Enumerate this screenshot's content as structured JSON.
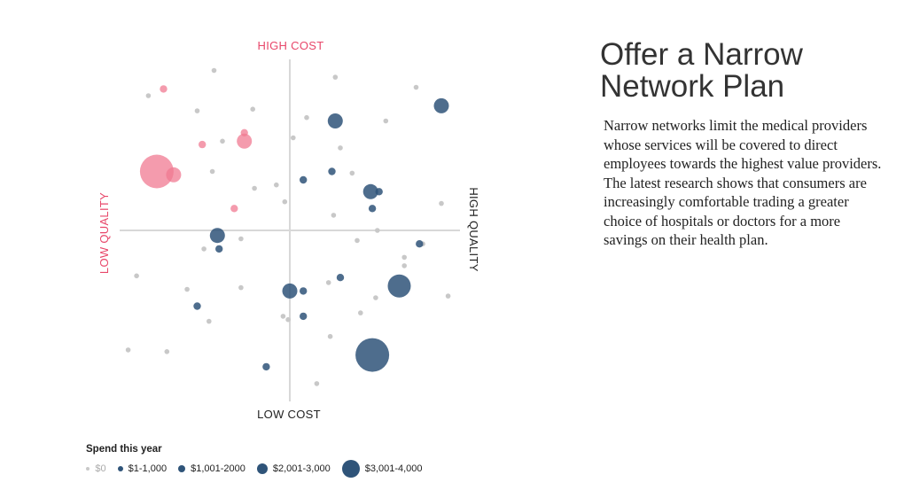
{
  "title": "Offer a Narrow Network Plan",
  "body": "Narrow networks limit the medical providers whose services will be covered to direct employees towards the highest value providers. The latest research shows that consumers are increasingly comfortable trading a greater choice of hospitals or doctors for a more savings on their health plan.",
  "colors": {
    "zero": "#c8c8c8",
    "blue": "#2f5479",
    "pink": "#f07a92",
    "axis_label_pink": "#e8476a",
    "axis_label_dark": "#222222",
    "axis_line": "#d8d8d8"
  },
  "legend": {
    "title": "Spend this year",
    "items": [
      {
        "label": "$0",
        "color": "#c8c8c8",
        "size_class": 0,
        "muted": true
      },
      {
        "label": "$1-1,000",
        "color": "#2f5479",
        "size_class": 1,
        "muted": false
      },
      {
        "label": "$1,001-2000",
        "color": "#2f5479",
        "size_class": 2,
        "muted": false
      },
      {
        "label": "$2,001-3,000",
        "color": "#2f5479",
        "size_class": 3,
        "muted": false
      },
      {
        "label": "$3,001-4,000",
        "color": "#2f5479",
        "size_class": 4,
        "muted": false
      }
    ]
  },
  "chart_data": {
    "type": "scatter",
    "title": "",
    "xlim": [
      -1,
      1
    ],
    "ylim": [
      -1,
      1
    ],
    "grid": false,
    "axis_labels": {
      "top": "HIGH COST",
      "bottom": "LOW COST",
      "left": "LOW QUALITY",
      "right": "HIGH QUALITY"
    },
    "size_classes": [
      "$0",
      "$1-1,000",
      "$1,001-2000",
      "$2,001-3,000",
      "$3,001-4,000"
    ],
    "series": [
      {
        "color": "#c8c8c8",
        "points": [
          {
            "x": -0.45,
            "y": 0.95,
            "s": 0
          },
          {
            "x": 0.27,
            "y": 0.91,
            "s": 0
          },
          {
            "x": 0.75,
            "y": 0.85,
            "s": 0
          },
          {
            "x": -0.84,
            "y": 0.8,
            "s": 0
          },
          {
            "x": -0.55,
            "y": 0.71,
            "s": 0
          },
          {
            "x": -0.22,
            "y": 0.72,
            "s": 0
          },
          {
            "x": 0.1,
            "y": 0.67,
            "s": 0
          },
          {
            "x": 0.57,
            "y": 0.65,
            "s": 0
          },
          {
            "x": 0.02,
            "y": 0.55,
            "s": 0
          },
          {
            "x": -0.4,
            "y": 0.53,
            "s": 0
          },
          {
            "x": 0.3,
            "y": 0.49,
            "s": 0
          },
          {
            "x": -0.46,
            "y": 0.35,
            "s": 0
          },
          {
            "x": 0.37,
            "y": 0.34,
            "s": 0
          },
          {
            "x": -0.08,
            "y": 0.27,
            "s": 0
          },
          {
            "x": -0.21,
            "y": 0.25,
            "s": 0
          },
          {
            "x": -0.03,
            "y": 0.17,
            "s": 0
          },
          {
            "x": 0.26,
            "y": 0.09,
            "s": 0
          },
          {
            "x": 0.9,
            "y": 0.16,
            "s": 0
          },
          {
            "x": 0.52,
            "y": 0.0,
            "s": 0
          },
          {
            "x": 0.4,
            "y": -0.06,
            "s": 0
          },
          {
            "x": -0.29,
            "y": -0.05,
            "s": 0
          },
          {
            "x": -0.51,
            "y": -0.11,
            "s": 0
          },
          {
            "x": 0.79,
            "y": -0.08,
            "s": 0
          },
          {
            "x": 0.68,
            "y": -0.16,
            "s": 0
          },
          {
            "x": 0.68,
            "y": -0.21,
            "s": 0
          },
          {
            "x": -0.91,
            "y": -0.27,
            "s": 0
          },
          {
            "x": 0.23,
            "y": -0.31,
            "s": 0
          },
          {
            "x": -0.61,
            "y": -0.35,
            "s": 0
          },
          {
            "x": -0.29,
            "y": -0.34,
            "s": 0
          },
          {
            "x": 0.51,
            "y": -0.4,
            "s": 0
          },
          {
            "x": 0.94,
            "y": -0.39,
            "s": 0
          },
          {
            "x": 0.42,
            "y": -0.49,
            "s": 0
          },
          {
            "x": -0.48,
            "y": -0.54,
            "s": 0
          },
          {
            "x": -0.04,
            "y": -0.51,
            "s": 0
          },
          {
            "x": -0.01,
            "y": -0.53,
            "s": 0
          },
          {
            "x": 0.24,
            "y": -0.63,
            "s": 0
          },
          {
            "x": -0.96,
            "y": -0.71,
            "s": 0
          },
          {
            "x": -0.73,
            "y": -0.72,
            "s": 0
          },
          {
            "x": 0.16,
            "y": -0.91,
            "s": 0
          }
        ]
      },
      {
        "color": "#2f5479",
        "points": [
          {
            "x": 0.9,
            "y": 0.74,
            "s": 2
          },
          {
            "x": 0.27,
            "y": 0.65,
            "s": 2
          },
          {
            "x": 0.25,
            "y": 0.35,
            "s": 1
          },
          {
            "x": 0.08,
            "y": 0.3,
            "s": 1
          },
          {
            "x": 0.48,
            "y": 0.23,
            "s": 2
          },
          {
            "x": 0.53,
            "y": 0.23,
            "s": 1
          },
          {
            "x": 0.49,
            "y": 0.13,
            "s": 1
          },
          {
            "x": -0.43,
            "y": -0.03,
            "s": 2
          },
          {
            "x": -0.42,
            "y": -0.11,
            "s": 1
          },
          {
            "x": 0.77,
            "y": -0.08,
            "s": 1
          },
          {
            "x": 0.3,
            "y": -0.28,
            "s": 1
          },
          {
            "x": 0.65,
            "y": -0.33,
            "s": 3
          },
          {
            "x": 0.0,
            "y": -0.36,
            "s": 2
          },
          {
            "x": 0.08,
            "y": -0.36,
            "s": 1
          },
          {
            "x": -0.55,
            "y": -0.45,
            "s": 1
          },
          {
            "x": 0.08,
            "y": -0.51,
            "s": 1
          },
          {
            "x": 0.49,
            "y": -0.74,
            "s": 4
          },
          {
            "x": -0.14,
            "y": -0.81,
            "s": 1
          }
        ]
      },
      {
        "color": "#f07a92",
        "points": [
          {
            "x": -0.75,
            "y": 0.84,
            "s": 1
          },
          {
            "x": -0.27,
            "y": 0.58,
            "s": 1
          },
          {
            "x": -0.27,
            "y": 0.53,
            "s": 2
          },
          {
            "x": -0.52,
            "y": 0.51,
            "s": 1
          },
          {
            "x": -0.79,
            "y": 0.35,
            "s": 4
          },
          {
            "x": -0.69,
            "y": 0.33,
            "s": 2
          },
          {
            "x": -0.33,
            "y": 0.13,
            "s": 1
          }
        ]
      }
    ]
  }
}
